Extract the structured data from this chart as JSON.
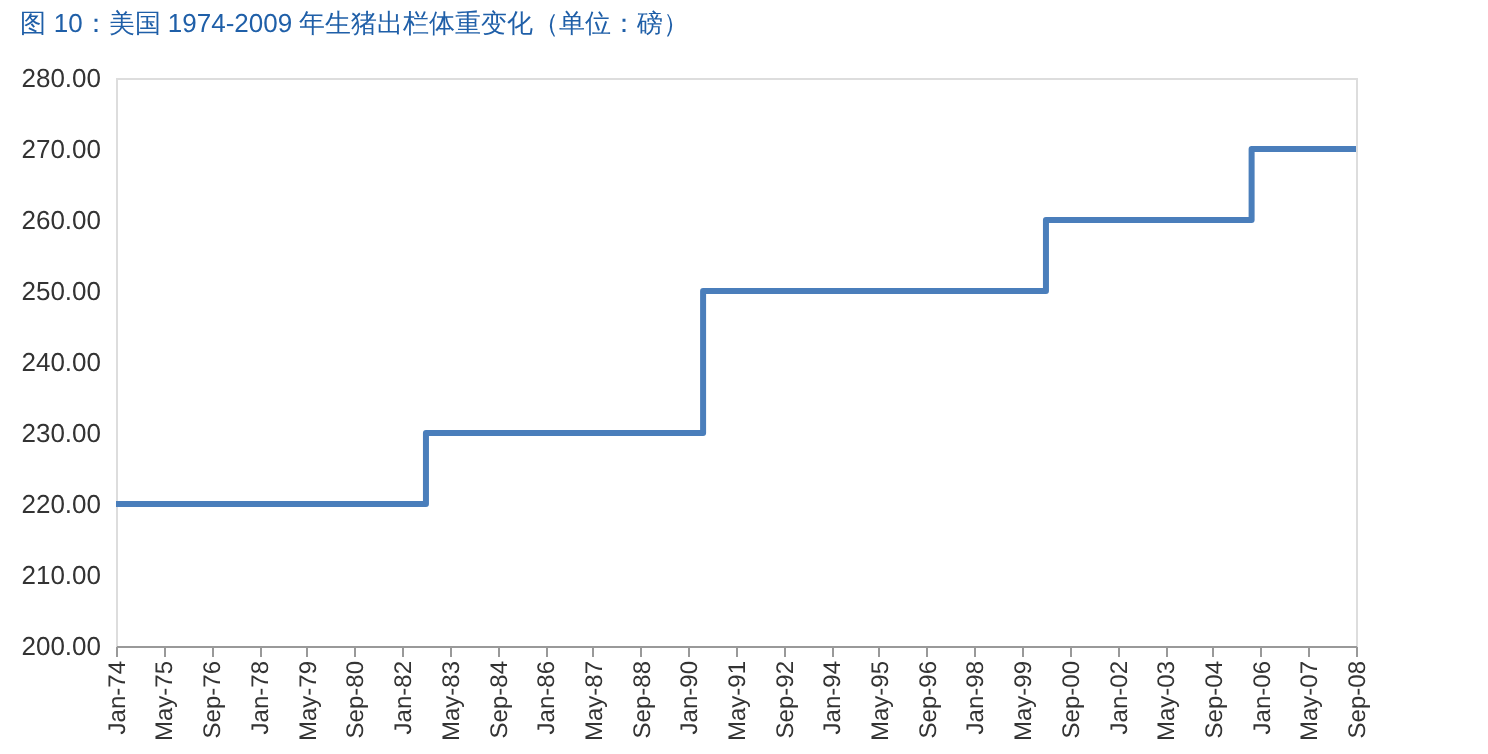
{
  "chart_data": {
    "type": "step",
    "title": "图 10：美国 1974-2009 年生猪出栏体重变化（单位：磅）",
    "x": [
      "1974-01",
      "1982-09",
      "1990-06",
      "2000-01",
      "2005-10",
      "2008-09"
    ],
    "series": [
      {
        "color": "#4a7ebb",
        "values": [
          220,
          230,
          250,
          260,
          270,
          270
        ]
      }
    ],
    "xlim": [
      "1974-01",
      "2008-09"
    ],
    "xticks": [
      {
        "value": "1974-01",
        "label": "Jan-74"
      },
      {
        "value": "1975-05",
        "label": "May-75"
      },
      {
        "value": "1976-09",
        "label": "Sep-76"
      },
      {
        "value": "1978-01",
        "label": "Jan-78"
      },
      {
        "value": "1979-05",
        "label": "May-79"
      },
      {
        "value": "1980-09",
        "label": "Sep-80"
      },
      {
        "value": "1982-01",
        "label": "Jan-82"
      },
      {
        "value": "1983-05",
        "label": "May-83"
      },
      {
        "value": "1984-09",
        "label": "Sep-84"
      },
      {
        "value": "1986-01",
        "label": "Jan-86"
      },
      {
        "value": "1987-05",
        "label": "May-87"
      },
      {
        "value": "1988-09",
        "label": "Sep-88"
      },
      {
        "value": "1990-01",
        "label": "Jan-90"
      },
      {
        "value": "1991-05",
        "label": "May-91"
      },
      {
        "value": "1992-09",
        "label": "Sep-92"
      },
      {
        "value": "1994-01",
        "label": "Jan-94"
      },
      {
        "value": "1995-05",
        "label": "May-95"
      },
      {
        "value": "1996-09",
        "label": "Sep-96"
      },
      {
        "value": "1998-01",
        "label": "Jan-98"
      },
      {
        "value": "1999-05",
        "label": "May-99"
      },
      {
        "value": "2000-09",
        "label": "Sep-00"
      },
      {
        "value": "2002-01",
        "label": "Jan-02"
      },
      {
        "value": "2003-05",
        "label": "May-03"
      },
      {
        "value": "2004-09",
        "label": "Sep-04"
      },
      {
        "value": "2006-01",
        "label": "Jan-06"
      },
      {
        "value": "2007-05",
        "label": "May-07"
      },
      {
        "value": "2008-09",
        "label": "Sep-08"
      }
    ],
    "ylim": [
      200,
      280
    ],
    "yticks": [
      {
        "value": 200,
        "label": "200.00"
      },
      {
        "value": 210,
        "label": "210.00"
      },
      {
        "value": 220,
        "label": "220.00"
      },
      {
        "value": 230,
        "label": "230.00"
      },
      {
        "value": 240,
        "label": "240.00"
      },
      {
        "value": 250,
        "label": "250.00"
      },
      {
        "value": 260,
        "label": "260.00"
      },
      {
        "value": 270,
        "label": "270.00"
      },
      {
        "value": 280,
        "label": "280.00"
      }
    ],
    "grid": false,
    "marker": "none",
    "line_style": "solid"
  }
}
